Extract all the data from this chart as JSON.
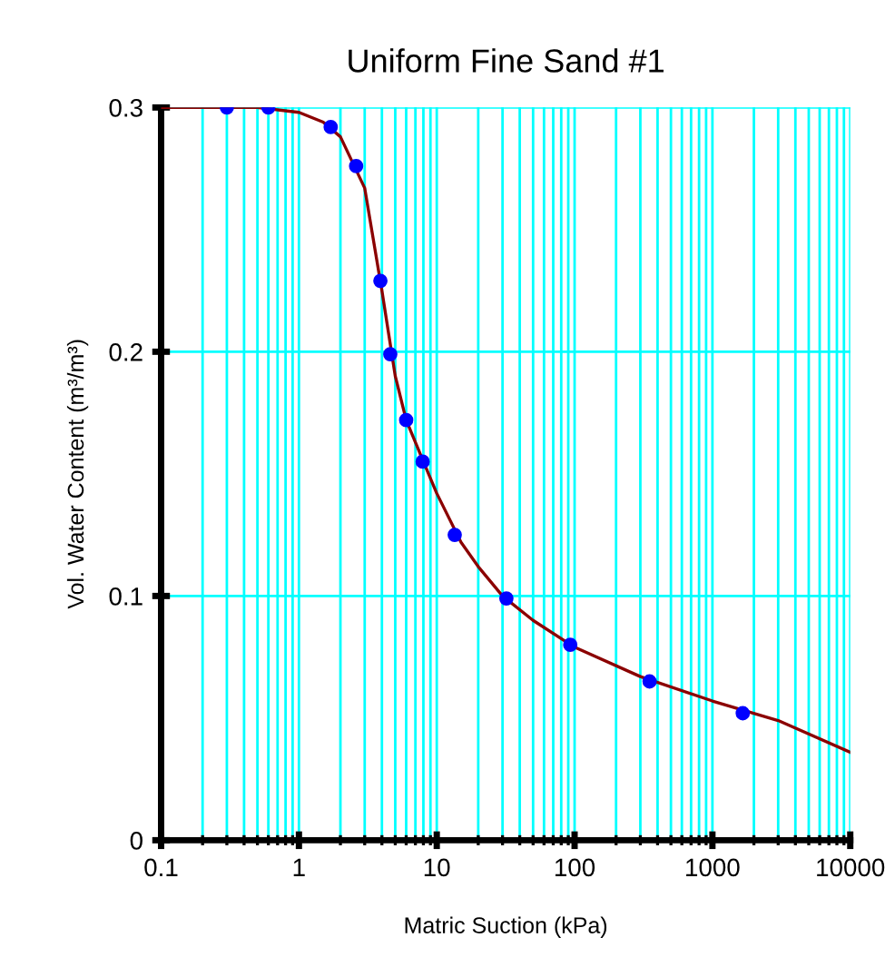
{
  "chart_data": {
    "type": "scatter",
    "title": "Uniform Fine Sand #1",
    "xlabel": "Matric Suction (kPa)",
    "ylabel": "Vol. Water Content (m³/m³)",
    "log": "x",
    "grid": true,
    "xlim": [
      0.1,
      10000
    ],
    "ylim": [
      0,
      0.3
    ],
    "xticks": [
      0.1,
      1,
      10,
      100,
      1000,
      10000
    ],
    "yticks": [
      0,
      0.1,
      0.2,
      0.3
    ],
    "series": [
      {
        "color": "#0000ff",
        "marker": "circle",
        "x": [
          0.3,
          0.6,
          1.7,
          2.6,
          3.9,
          4.6,
          6.0,
          7.9,
          13.5,
          32,
          93,
          350,
          1660
        ],
        "values": [
          0.3,
          0.3,
          0.292,
          0.276,
          0.229,
          0.199,
          0.172,
          0.155,
          0.125,
          0.099,
          0.08,
          0.065,
          0.052
        ]
      },
      {
        "type": "line",
        "color": "#8b0000",
        "marker": "none",
        "line_style": "solid",
        "x": [
          0.1,
          0.5,
          1,
          1.5,
          2,
          3,
          4,
          5,
          6,
          8,
          10,
          15,
          20,
          30,
          50,
          100,
          300,
          1000,
          3000,
          10000
        ],
        "values": [
          0.3,
          0.3,
          0.298,
          0.294,
          0.288,
          0.267,
          0.225,
          0.19,
          0.172,
          0.155,
          0.142,
          0.122,
          0.112,
          0.1,
          0.09,
          0.079,
          0.067,
          0.057,
          0.049,
          0.036
        ]
      }
    ]
  }
}
